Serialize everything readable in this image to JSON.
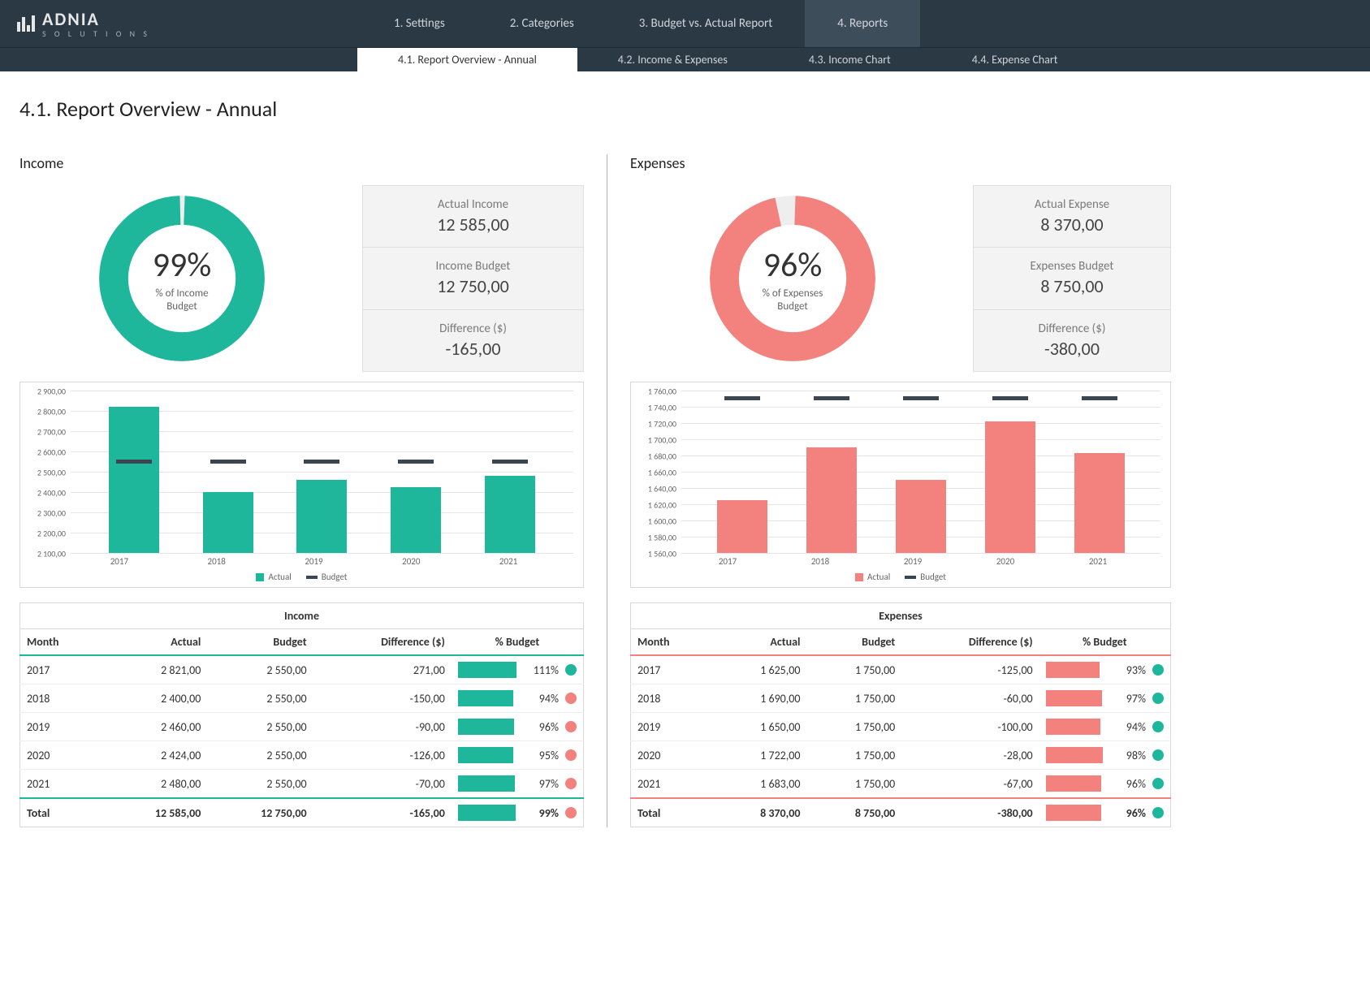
{
  "brand": {
    "name": "ADNIA",
    "sub": "S O L U T I O N S"
  },
  "nav": {
    "tabs": [
      {
        "label": "1. Settings",
        "active": false
      },
      {
        "label": "2. Categories",
        "active": false
      },
      {
        "label": "3. Budget vs. Actual Report",
        "active": false
      },
      {
        "label": "4. Reports",
        "active": true
      }
    ],
    "sub_tabs": [
      {
        "label": "4.1. Report Overview - Annual",
        "active": true
      },
      {
        "label": "4.2. Income & Expenses",
        "active": false
      },
      {
        "label": "4.3. Income Chart",
        "active": false
      },
      {
        "label": "4.4. Expense Chart",
        "active": false
      }
    ]
  },
  "page_title": "4.1. Report Overview - Annual",
  "colors": {
    "income": "#1eb79b",
    "expense": "#f3817d",
    "budget_mark": "#3b4651",
    "gridline": "#e4e4e4",
    "dot_good": "#1eb79b",
    "dot_bad": "#f3817d"
  },
  "income": {
    "title": "Income",
    "donut": {
      "percent": 99,
      "label_line1": "% of Income",
      "label_line2": "Budget"
    },
    "stats": [
      {
        "label": "Actual Income",
        "value": "12 585,00"
      },
      {
        "label": "Income Budget",
        "value": "12 750,00"
      },
      {
        "label": "Difference ($)",
        "value": "-165,00"
      }
    ],
    "chart": {
      "ymin": 2100,
      "ymax": 2900,
      "ystep": 100,
      "ylabels": [
        "2 900,00",
        "2 800,00",
        "2 700,00",
        "2 600,00",
        "2 500,00",
        "2 400,00",
        "2 300,00",
        "2 200,00",
        "2 100,00"
      ],
      "categories": [
        "2017",
        "2018",
        "2019",
        "2020",
        "2021"
      ],
      "actual": [
        2821,
        2400,
        2460,
        2424,
        2480
      ],
      "budget": [
        2550,
        2550,
        2550,
        2550,
        2550
      ],
      "legend": {
        "actual": "Actual",
        "budget": "Budget"
      }
    },
    "table": {
      "caption": "Income",
      "headers": [
        "Month",
        "Actual",
        "Budget",
        "Difference ($)",
        "% Budget"
      ],
      "rows": [
        {
          "month": "2017",
          "actual": "2 821,00",
          "budget": "2 550,00",
          "diff": "271,00",
          "pct": 111,
          "good": true
        },
        {
          "month": "2018",
          "actual": "2 400,00",
          "budget": "2 550,00",
          "diff": "-150,00",
          "pct": 94,
          "good": false
        },
        {
          "month": "2019",
          "actual": "2 460,00",
          "budget": "2 550,00",
          "diff": "-90,00",
          "pct": 96,
          "good": false
        },
        {
          "month": "2020",
          "actual": "2 424,00",
          "budget": "2 550,00",
          "diff": "-126,00",
          "pct": 95,
          "good": false
        },
        {
          "month": "2021",
          "actual": "2 480,00",
          "budget": "2 550,00",
          "diff": "-70,00",
          "pct": 97,
          "good": false
        }
      ],
      "total": {
        "month": "Total",
        "actual": "12 585,00",
        "budget": "12 750,00",
        "diff": "-165,00",
        "pct": 99,
        "good": false
      }
    }
  },
  "expenses": {
    "title": "Expenses",
    "donut": {
      "percent": 96,
      "label_line1": "% of Expenses",
      "label_line2": "Budget"
    },
    "stats": [
      {
        "label": "Actual Expense",
        "value": "8 370,00"
      },
      {
        "label": "Expenses Budget",
        "value": "8 750,00"
      },
      {
        "label": "Difference ($)",
        "value": "-380,00"
      }
    ],
    "chart": {
      "ymin": 1560,
      "ymax": 1760,
      "ystep": 20,
      "ylabels": [
        "1 760,00",
        "1 740,00",
        "1 720,00",
        "1 700,00",
        "1 680,00",
        "1 660,00",
        "1 640,00",
        "1 620,00",
        "1 600,00",
        "1 580,00",
        "1 560,00"
      ],
      "categories": [
        "2017",
        "2018",
        "2019",
        "2020",
        "2021"
      ],
      "actual": [
        1625,
        1690,
        1650,
        1722,
        1683
      ],
      "budget": [
        1750,
        1750,
        1750,
        1750,
        1750
      ],
      "legend": {
        "actual": "Actual",
        "budget": "Budget"
      }
    },
    "table": {
      "caption": "Expenses",
      "headers": [
        "Month",
        "Actual",
        "Budget",
        "Difference ($)",
        "% Budget"
      ],
      "rows": [
        {
          "month": "2017",
          "actual": "1 625,00",
          "budget": "1 750,00",
          "diff": "-125,00",
          "pct": 93,
          "good": true
        },
        {
          "month": "2018",
          "actual": "1 690,00",
          "budget": "1 750,00",
          "diff": "-60,00",
          "pct": 97,
          "good": true
        },
        {
          "month": "2019",
          "actual": "1 650,00",
          "budget": "1 750,00",
          "diff": "-100,00",
          "pct": 94,
          "good": true
        },
        {
          "month": "2020",
          "actual": "1 722,00",
          "budget": "1 750,00",
          "diff": "-28,00",
          "pct": 98,
          "good": true
        },
        {
          "month": "2021",
          "actual": "1 683,00",
          "budget": "1 750,00",
          "diff": "-67,00",
          "pct": 96,
          "good": true
        }
      ],
      "total": {
        "month": "Total",
        "actual": "8 370,00",
        "budget": "8 750,00",
        "diff": "-380,00",
        "pct": 96,
        "good": true
      }
    }
  }
}
